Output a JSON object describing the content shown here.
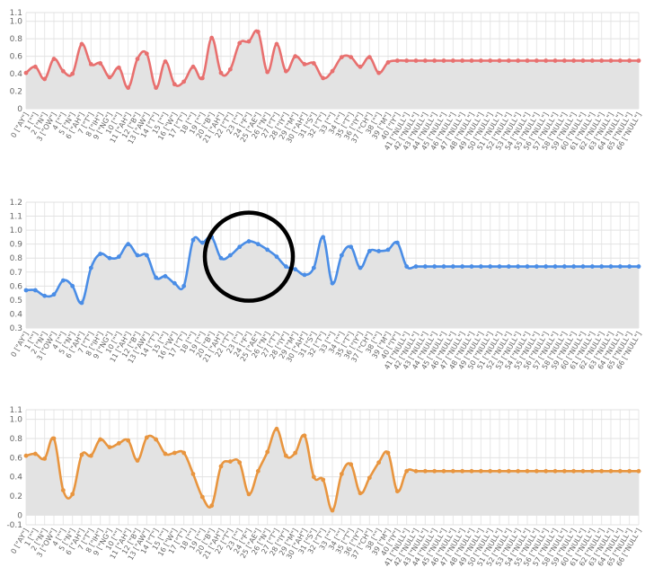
{
  "chart_data": [
    {
      "type": "line",
      "color": "#e8706f",
      "fill": "#e3e3e3",
      "ylim": [
        0,
        1.1
      ],
      "yticks": [
        "0",
        "0.2",
        "0.4",
        "0.6",
        "0.8",
        "1.0",
        "1.1"
      ],
      "grid": true,
      "x": [
        "0 [\"AY\"]",
        "1 [\"\"]",
        "2 [\"N\"]",
        "3 [\"OW\"]",
        "4 [\"\"]",
        "5 [\"N\"]",
        "6 [\"AH\"]",
        "7 [\"T\"]",
        "8 [\"IH\"]",
        "9 [\"NG\"]",
        "10 [\"\"]",
        "11 [\"AH\"]",
        "12 [\"B\"]",
        "13 [\"AW\"]",
        "14 [\"T\"]",
        "15 [\"\"]",
        "16 [\"W\"]",
        "17 [\"T\"]",
        "18 [\"\"]",
        "19 [\"\"]",
        "20 [\"B\"]",
        "21 [\"AH\"]",
        "22 [\"T\"]",
        "23 [\"\"]",
        "24 [\"F\"]",
        "25 [\"AE\"]",
        "26 [\"N\"]",
        "27 [\"T\"]",
        "28 [\"IY\"]",
        "29 [\"M\"]",
        "30 [\"AH\"]",
        "31 [\"S\"]",
        "32 [\"T\"]",
        "33 [\"\"]",
        "34 [\"\"]",
        "35 [\"T\"]",
        "36 [\"IY\"]",
        "37 [\"CH\"]",
        "38 [\"\"]",
        "39 [\"M\"]",
        "40 [\"IY\"]",
        "41 [\"NULL\"]",
        "42 [\"NULL\"]",
        "43 [\"NULL\"]",
        "44 [\"NULL\"]",
        "45 [\"NULL\"]",
        "46 [\"NULL\"]",
        "47 [\"NULL\"]",
        "48 [\"NULL\"]",
        "49 [\"NULL\"]",
        "50 [\"NULL\"]",
        "51 [\"NULL\"]",
        "52 [\"NULL\"]",
        "53 [\"NULL\"]",
        "54 [\"NULL\"]",
        "55 [\"NULL\"]",
        "56 [\"NULL\"]",
        "57 [\"NULL\"]",
        "58 [\"NULL\"]",
        "59 [\"NULL\"]",
        "60 [\"NULL\"]",
        "61 [\"NULL\"]",
        "62 [\"NULL\"]",
        "63 [\"NULL\"]",
        "64 [\"NULL\"]",
        "65 [\"NULL\"]",
        "66 [\"NULL\"]"
      ],
      "y": [
        0.41,
        0.48,
        0.34,
        0.57,
        0.43,
        0.4,
        0.74,
        0.51,
        0.52,
        0.36,
        0.47,
        0.24,
        0.57,
        0.63,
        0.24,
        0.54,
        0.28,
        0.31,
        0.48,
        0.35,
        0.81,
        0.41,
        0.45,
        0.75,
        0.77,
        0.88,
        0.42,
        0.74,
        0.43,
        0.6,
        0.51,
        0.52,
        0.35,
        0.43,
        0.59,
        0.59,
        0.48,
        0.59,
        0.41,
        0.53,
        0.55,
        0.55,
        0.55,
        0.55,
        0.55,
        0.55,
        0.55,
        0.55,
        0.55,
        0.55,
        0.55,
        0.55,
        0.55,
        0.55,
        0.55,
        0.55,
        0.55,
        0.55,
        0.55,
        0.55,
        0.55,
        0.55,
        0.55,
        0.55,
        0.55,
        0.55,
        0.55
      ]
    },
    {
      "type": "line",
      "color": "#4a8de6",
      "fill": "#e3e3e3",
      "ylim": [
        0.3,
        1.2
      ],
      "yticks": [
        "0.3",
        "0.4",
        "0.5",
        "0.6",
        "0.7",
        "0.8",
        "0.9",
        "1.0",
        "1.1",
        "1.2"
      ],
      "grid": true,
      "x": [
        "0 [\"AY\"]",
        "1 [\"\"]",
        "2 [\"N\"]",
        "3 [\"OW\"]",
        "4 [\"\"]",
        "5 [\"N\"]",
        "6 [\"AH\"]",
        "7 [\"T\"]",
        "8 [\"IH\"]",
        "9 [\"NG\"]",
        "10 [\"\"]",
        "11 [\"AH\"]",
        "12 [\"B\"]",
        "13 [\"AW\"]",
        "14 [\"T\"]",
        "15 [\"\"]",
        "16 [\"W\"]",
        "17 [\"T\"]",
        "18 [\"\"]",
        "19 [\"\"]",
        "20 [\"B\"]",
        "21 [\"AH\"]",
        "22 [\"T\"]",
        "23 [\"\"]",
        "24 [\"F\"]",
        "25 [\"AE\"]",
        "26 [\"N\"]",
        "27 [\"T\"]",
        "28 [\"IY\"]",
        "29 [\"M\"]",
        "30 [\"AH\"]",
        "31 [\"S\"]",
        "32 [\"T\"]",
        "33 [\"\"]",
        "34 [\"\"]",
        "35 [\"T\"]",
        "36 [\"IY\"]",
        "37 [\"CH\"]",
        "38 [\"\"]",
        "39 [\"M\"]",
        "40 [\"IY\"]",
        "41 [\"NULL\"]",
        "42 [\"NULL\"]",
        "43 [\"NULL\"]",
        "44 [\"NULL\"]",
        "45 [\"NULL\"]",
        "46 [\"NULL\"]",
        "47 [\"NULL\"]",
        "48 [\"NULL\"]",
        "49 [\"NULL\"]",
        "50 [\"NULL\"]",
        "51 [\"NULL\"]",
        "52 [\"NULL\"]",
        "53 [\"NULL\"]",
        "54 [\"NULL\"]",
        "55 [\"NULL\"]",
        "56 [\"NULL\"]",
        "57 [\"NULL\"]",
        "58 [\"NULL\"]",
        "59 [\"NULL\"]",
        "60 [\"NULL\"]",
        "61 [\"NULL\"]",
        "62 [\"NULL\"]",
        "63 [\"NULL\"]",
        "64 [\"NULL\"]",
        "65 [\"NULL\"]",
        "66 [\"NULL\"]"
      ],
      "y": [
        0.57,
        0.57,
        0.53,
        0.54,
        0.64,
        0.6,
        0.48,
        0.73,
        0.83,
        0.8,
        0.81,
        0.9,
        0.82,
        0.82,
        0.66,
        0.67,
        0.62,
        0.6,
        0.93,
        0.91,
        0.95,
        0.8,
        0.82,
        0.88,
        0.92,
        0.9,
        0.86,
        0.81,
        0.74,
        0.72,
        0.68,
        0.73,
        0.95,
        0.62,
        0.82,
        0.88,
        0.73,
        0.85,
        0.85,
        0.86,
        0.91,
        0.74,
        0.74,
        0.74,
        0.74,
        0.74,
        0.74,
        0.74,
        0.74,
        0.74,
        0.74,
        0.74,
        0.74,
        0.74,
        0.74,
        0.74,
        0.74,
        0.74,
        0.74,
        0.74,
        0.74,
        0.74,
        0.74,
        0.74,
        0.74,
        0.74,
        0.74
      ],
      "annotation": {
        "type": "circle",
        "color": "#000000",
        "center_x_index": 24,
        "center_y": 0.81
      }
    },
    {
      "type": "line",
      "color": "#e8953f",
      "fill": "#e3e3e3",
      "ylim": [
        -0.1,
        1.1
      ],
      "yticks": [
        "-0.1",
        "0",
        "0.2",
        "0.4",
        "0.6",
        "0.8",
        "1.0",
        "1.1"
      ],
      "grid": true,
      "x": [
        "0 [\"AY\"]",
        "1 [\"\"]",
        "2 [\"N\"]",
        "3 [\"OW\"]",
        "4 [\"\"]",
        "5 [\"N\"]",
        "6 [\"AH\"]",
        "7 [\"T\"]",
        "8 [\"IH\"]",
        "9 [\"NG\"]",
        "10 [\"\"]",
        "11 [\"AH\"]",
        "12 [\"B\"]",
        "13 [\"AW\"]",
        "14 [\"T\"]",
        "15 [\"\"]",
        "16 [\"W\"]",
        "17 [\"T\"]",
        "18 [\"\"]",
        "19 [\"\"]",
        "20 [\"B\"]",
        "21 [\"AH\"]",
        "22 [\"T\"]",
        "23 [\"\"]",
        "24 [\"F\"]",
        "25 [\"AE\"]",
        "26 [\"N\"]",
        "27 [\"T\"]",
        "28 [\"IY\"]",
        "29 [\"M\"]",
        "30 [\"AH\"]",
        "31 [\"S\"]",
        "32 [\"T\"]",
        "33 [\"\"]",
        "34 [\"\"]",
        "35 [\"T\"]",
        "36 [\"IY\"]",
        "37 [\"CH\"]",
        "38 [\"\"]",
        "39 [\"M\"]",
        "40 [\"IY\"]",
        "41 [\"NULL\"]",
        "42 [\"NULL\"]",
        "43 [\"NULL\"]",
        "44 [\"NULL\"]",
        "45 [\"NULL\"]",
        "46 [\"NULL\"]",
        "47 [\"NULL\"]",
        "48 [\"NULL\"]",
        "49 [\"NULL\"]",
        "50 [\"NULL\"]",
        "51 [\"NULL\"]",
        "52 [\"NULL\"]",
        "53 [\"NULL\"]",
        "54 [\"NULL\"]",
        "55 [\"NULL\"]",
        "56 [\"NULL\"]",
        "57 [\"NULL\"]",
        "58 [\"NULL\"]",
        "59 [\"NULL\"]",
        "60 [\"NULL\"]",
        "61 [\"NULL\"]",
        "62 [\"NULL\"]",
        "63 [\"NULL\"]",
        "64 [\"NULL\"]",
        "65 [\"NULL\"]",
        "66 [\"NULL\"]"
      ],
      "y": [
        0.62,
        0.64,
        0.59,
        0.8,
        0.26,
        0.22,
        0.63,
        0.62,
        0.79,
        0.71,
        0.75,
        0.78,
        0.57,
        0.81,
        0.79,
        0.64,
        0.65,
        0.65,
        0.43,
        0.19,
        0.1,
        0.51,
        0.56,
        0.55,
        0.22,
        0.46,
        0.66,
        0.9,
        0.62,
        0.65,
        0.83,
        0.4,
        0.37,
        0.05,
        0.43,
        0.53,
        0.23,
        0.39,
        0.55,
        0.65,
        0.25,
        0.46,
        0.46,
        0.46,
        0.46,
        0.46,
        0.46,
        0.46,
        0.46,
        0.46,
        0.46,
        0.46,
        0.46,
        0.46,
        0.46,
        0.46,
        0.46,
        0.46,
        0.46,
        0.46,
        0.46,
        0.46,
        0.46,
        0.46,
        0.46,
        0.46,
        0.46
      ]
    }
  ]
}
